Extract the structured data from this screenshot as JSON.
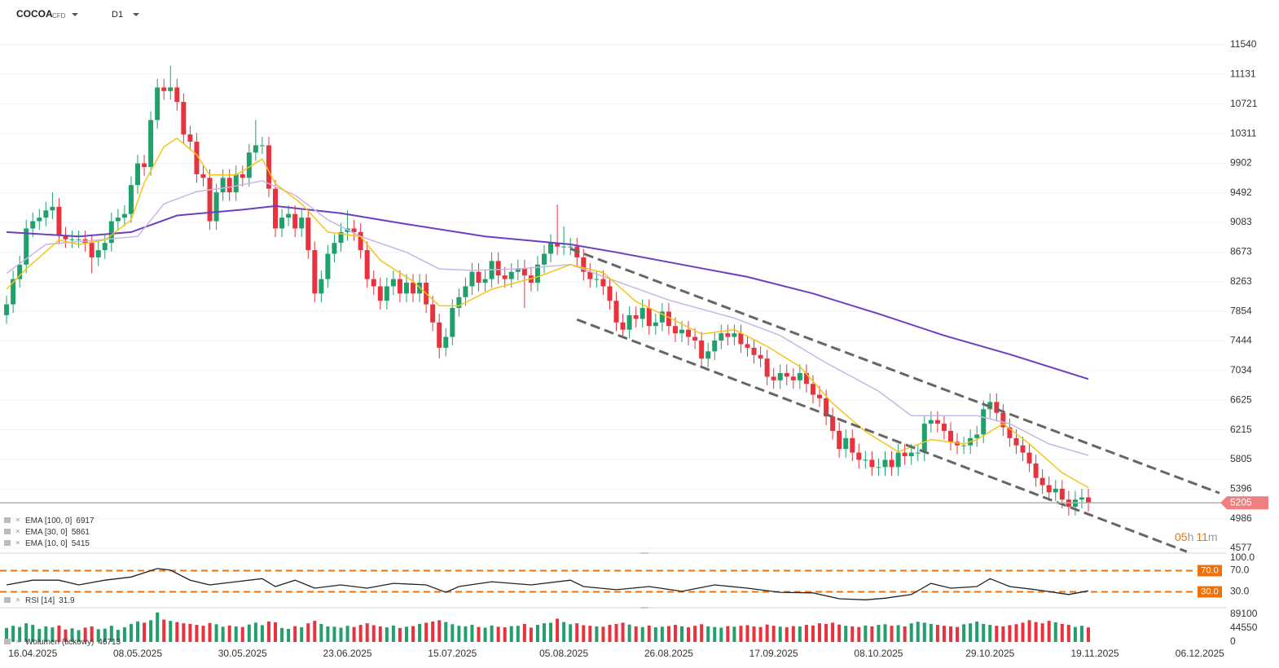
{
  "header": {
    "symbol": "COCOA",
    "kind": "CFD",
    "timeframe": "D1"
  },
  "countdown": {
    "hours": "05",
    "h": "h",
    "minutes": "11",
    "m": "m"
  },
  "chart_data": [
    {
      "type": "candlestick",
      "up_color": "#22a06b",
      "down_color": "#e8323e",
      "grid": true,
      "xlim": [
        -1,
        186
      ],
      "ylim": [
        4577,
        11540
      ],
      "yticks": [
        11540,
        11131,
        10721,
        10311,
        9902,
        9492,
        9083,
        8673,
        8263,
        7854,
        7444,
        7034,
        6625,
        6215,
        5805,
        5396,
        4986,
        4577
      ],
      "xticks": [
        {
          "value": 4,
          "label": "16.04.2025"
        },
        {
          "value": 20,
          "label": "08.05.2025"
        },
        {
          "value": 36,
          "label": "30.05.2025"
        },
        {
          "value": 52,
          "label": "23.06.2025"
        },
        {
          "value": 68,
          "label": "15.07.2025"
        },
        {
          "value": 85,
          "label": "05.08.2025"
        },
        {
          "value": 101,
          "label": "26.08.2025"
        },
        {
          "value": 117,
          "label": "17.09.2025"
        },
        {
          "value": 133,
          "label": "08.10.2025"
        },
        {
          "value": 150,
          "label": "29.10.2025"
        },
        {
          "value": 166,
          "label": "19.11.2025"
        },
        {
          "value": 182,
          "label": "06.12.2025"
        }
      ],
      "open": [
        7800,
        7950,
        8300,
        8500,
        9000,
        9100,
        9150,
        9250,
        9300,
        8900,
        8850,
        8850,
        8850,
        8800,
        8600,
        8700,
        8800,
        9100,
        9150,
        9200,
        9600,
        9900,
        9850,
        10500,
        10950,
        10900,
        10950,
        10750,
        10300,
        10200,
        9750,
        9700,
        9100,
        9500,
        9700,
        9500,
        9750,
        9700,
        10050,
        10150,
        10150,
        9550,
        9000,
        9150,
        9200,
        9000,
        9150,
        8700,
        8100,
        8300,
        8650,
        8800,
        8950,
        9000,
        8950,
        8700,
        8300,
        8200,
        8000,
        8200,
        8300,
        8100,
        8250,
        8100,
        8250,
        7950,
        7700,
        7350,
        7500,
        7900,
        8050,
        8200,
        8400,
        8250,
        8300,
        8550,
        8350,
        8300,
        8400,
        8450,
        8350,
        8250,
        8500,
        8650,
        8800,
        8750,
        8750,
        8750,
        8600,
        8400,
        8300,
        8300,
        8200,
        8000,
        7700,
        7600,
        7800,
        7750,
        7900,
        7650,
        7700,
        7850,
        7650,
        7550,
        7600,
        7500,
        7450,
        7200,
        7300,
        7450,
        7550,
        7500,
        7550,
        7400,
        7350,
        7250,
        7200,
        6950,
        6900,
        7000,
        6950,
        6900,
        7000,
        6850,
        6700,
        6650,
        6400,
        6200,
        5950,
        6100,
        5900,
        5800,
        5800,
        5700,
        5700,
        5800,
        5700,
        5900,
        5850,
        5900,
        5900,
        6300,
        6350,
        6300,
        6200,
        6050,
        6000,
        6000,
        6100,
        6150,
        6500,
        6600,
        6450,
        6250,
        6100,
        6000,
        5900,
        5750,
        5550,
        5450,
        5350,
        5400,
        5250,
        5150,
        5250,
        5280
      ],
      "high": [
        8070,
        8420,
        8620,
        9120,
        9220,
        9270,
        9370,
        9500,
        9420,
        9020,
        8970,
        8970,
        8970,
        8920,
        8820,
        8920,
        9220,
        9270,
        9320,
        9720,
        10020,
        10020,
        10620,
        11070,
        11070,
        11250,
        11070,
        10870,
        10420,
        10320,
        9870,
        9820,
        9620,
        9820,
        9820,
        9870,
        9870,
        10170,
        10500,
        10270,
        10270,
        9670,
        9270,
        9320,
        9320,
        9270,
        9270,
        8820,
        8420,
        8770,
        8920,
        9070,
        9250,
        9120,
        9070,
        8820,
        8420,
        8320,
        8320,
        8420,
        8420,
        8370,
        8370,
        8370,
        8370,
        8070,
        7820,
        7620,
        8020,
        8170,
        8320,
        8520,
        8520,
        8420,
        8670,
        8670,
        8470,
        8520,
        8570,
        8570,
        8470,
        8620,
        8770,
        8920,
        9330,
        9030,
        8870,
        8870,
        8720,
        8520,
        8420,
        8420,
        8320,
        8120,
        7820,
        7920,
        7920,
        8020,
        8020,
        7820,
        7970,
        7970,
        7770,
        7720,
        7720,
        7620,
        7570,
        7420,
        7570,
        7670,
        7670,
        7670,
        7670,
        7520,
        7470,
        7370,
        7320,
        7070,
        7120,
        7120,
        7070,
        7120,
        7120,
        6970,
        6820,
        6770,
        6520,
        6320,
        6220,
        6220,
        6020,
        5920,
        5920,
        5820,
        5920,
        5920,
        6020,
        6020,
        6020,
        6020,
        6420,
        6470,
        6470,
        6420,
        6320,
        6170,
        6120,
        6220,
        6270,
        6620,
        6720,
        6720,
        6570,
        6370,
        6220,
        6120,
        6020,
        5870,
        5670,
        5570,
        5520,
        5520,
        5370,
        5370,
        5400,
        5400
      ],
      "low": [
        7680,
        7830,
        8180,
        8380,
        8880,
        8980,
        9030,
        9130,
        8780,
        8730,
        8730,
        8730,
        8680,
        8380,
        8480,
        8580,
        8680,
        8980,
        9030,
        9080,
        9480,
        9730,
        9730,
        10380,
        10780,
        10780,
        10630,
        10180,
        10080,
        9630,
        9580,
        8980,
        8980,
        9380,
        9380,
        9380,
        9580,
        9580,
        9930,
        10030,
        9430,
        8880,
        8880,
        9030,
        8880,
        8880,
        8580,
        7980,
        7980,
        8180,
        8530,
        8680,
        8830,
        8830,
        8580,
        8180,
        8080,
        7880,
        7880,
        8080,
        7980,
        7980,
        7980,
        7980,
        7830,
        7580,
        7200,
        7230,
        7380,
        7780,
        7930,
        8080,
        8130,
        8130,
        8180,
        8230,
        8180,
        8180,
        8280,
        7900,
        8130,
        8130,
        8380,
        8530,
        8630,
        8630,
        8630,
        8480,
        8280,
        8180,
        8180,
        8080,
        7880,
        7580,
        7480,
        7480,
        7630,
        7630,
        7530,
        7530,
        7580,
        7530,
        7430,
        7430,
        7380,
        7330,
        7080,
        7080,
        7180,
        7330,
        7380,
        7380,
        7280,
        7230,
        7130,
        7080,
        6830,
        6780,
        6780,
        6830,
        6780,
        6780,
        6730,
        6580,
        6530,
        6280,
        6080,
        5830,
        5830,
        5780,
        5680,
        5680,
        5580,
        5580,
        5580,
        5580,
        5580,
        5730,
        5730,
        5780,
        5780,
        6180,
        6180,
        6080,
        5930,
        5880,
        5880,
        5880,
        5980,
        6030,
        6380,
        6330,
        6130,
        5980,
        5880,
        5780,
        5630,
        5430,
        5330,
        5230,
        5230,
        5130,
        5030,
        5030,
        5130,
        5085
      ],
      "close": [
        7950,
        8300,
        8500,
        9000,
        9100,
        9150,
        9250,
        9300,
        8900,
        8850,
        8850,
        8850,
        8800,
        8600,
        8700,
        8800,
        9100,
        9150,
        9200,
        9600,
        9900,
        9850,
        10500,
        10950,
        10900,
        10950,
        10750,
        10300,
        10200,
        9750,
        9700,
        9100,
        9500,
        9700,
        9500,
        9750,
        9700,
        10050,
        10150,
        10150,
        9550,
        9000,
        9150,
        9200,
        9000,
        9150,
        8700,
        8100,
        8300,
        8650,
        8800,
        8950,
        9000,
        8950,
        8700,
        8300,
        8200,
        8000,
        8200,
        8300,
        8100,
        8250,
        8100,
        8250,
        7950,
        7700,
        7350,
        7500,
        7900,
        8050,
        8200,
        8400,
        8250,
        8300,
        8550,
        8350,
        8300,
        8400,
        8450,
        8350,
        8250,
        8500,
        8650,
        8800,
        8750,
        8750,
        8750,
        8600,
        8400,
        8300,
        8300,
        8200,
        8000,
        7700,
        7600,
        7800,
        7750,
        7900,
        7650,
        7700,
        7850,
        7650,
        7550,
        7600,
        7500,
        7450,
        7200,
        7300,
        7450,
        7550,
        7500,
        7550,
        7400,
        7350,
        7250,
        7200,
        6950,
        6900,
        7000,
        6950,
        6900,
        7000,
        6850,
        6700,
        6650,
        6400,
        6200,
        5950,
        6100,
        5900,
        5800,
        5800,
        5700,
        5700,
        5800,
        5700,
        5900,
        5850,
        5900,
        5900,
        6300,
        6350,
        6300,
        6200,
        6050,
        6000,
        6000,
        6100,
        6150,
        6500,
        6600,
        6450,
        6250,
        6100,
        6000,
        5900,
        5750,
        5550,
        5450,
        5350,
        5400,
        5250,
        5150,
        5250,
        5280,
        5205
      ],
      "series": [
        {
          "name": "EMA [100,  0]",
          "color": "#6a3fc0",
          "x": [
            0,
            11,
            19,
            26,
            36,
            41,
            51,
            61,
            73,
            86,
            93,
            103,
            113,
            123,
            133,
            143,
            153,
            165
          ],
          "values": [
            8950,
            8890,
            8950,
            9180,
            9260,
            9310,
            9210,
            9060,
            8890,
            8780,
            8670,
            8500,
            8330,
            8100,
            7820,
            7520,
            7260,
            6917
          ]
        },
        {
          "name": "EMA [30,  0]",
          "color": "#c9b6e4",
          "x": [
            0,
            6,
            14,
            20,
            24,
            29,
            34,
            39,
            44,
            49,
            54,
            61,
            66,
            71,
            78,
            86,
            93,
            101,
            111,
            118,
            125,
            133,
            138,
            143,
            148,
            153,
            159,
            165
          ],
          "values": [
            8380,
            8780,
            8840,
            8890,
            9340,
            9510,
            9570,
            9660,
            9460,
            9120,
            8890,
            8670,
            8440,
            8420,
            8440,
            8500,
            8270,
            8010,
            7760,
            7520,
            7140,
            6750,
            6410,
            6410,
            6410,
            6300,
            6020,
            5861
          ]
        },
        {
          "name": "EMA [10,  0]",
          "color": "#f5c518",
          "x": [
            0,
            3,
            8,
            11,
            15,
            19,
            21,
            24,
            26,
            29,
            31,
            35,
            39,
            41,
            45,
            49,
            54,
            57,
            62,
            66,
            69,
            74,
            81,
            86,
            91,
            96,
            101,
            106,
            111,
            116,
            121,
            126,
            131,
            136,
            141,
            146,
            148,
            152,
            156,
            161,
            165
          ],
          "values": [
            8160,
            8440,
            8840,
            8780,
            8840,
            9120,
            9630,
            10130,
            10250,
            10020,
            9740,
            9740,
            9960,
            9620,
            9340,
            8950,
            8890,
            8560,
            8270,
            7930,
            7930,
            8160,
            8330,
            8500,
            8390,
            7990,
            7770,
            7540,
            7600,
            7370,
            7090,
            6580,
            6190,
            5910,
            6080,
            6020,
            6080,
            6300,
            6020,
            5620,
            5415
          ]
        }
      ],
      "trendlines": [
        {
          "x": [
            86,
            185
          ],
          "values": [
            8720,
            5340
          ]
        },
        {
          "x": [
            87,
            180
          ],
          "values": [
            7740,
            4530
          ]
        }
      ]
    },
    {
      "type": "line",
      "name": "RSI [14]",
      "color": "#222222",
      "level_color": "#f0700a",
      "ylim": [
        0,
        100
      ],
      "yticks": [
        {
          "value": 100,
          "label": "100.0"
        },
        {
          "value": 70,
          "label": "70.0"
        },
        {
          "value": 30,
          "label": "30.0"
        }
      ],
      "levels": [
        {
          "value": 70,
          "label": "70.0"
        },
        {
          "value": 30,
          "label": "30.0"
        }
      ],
      "x": [
        0,
        4,
        8,
        11,
        15,
        19,
        23,
        25,
        28,
        31,
        35,
        39,
        41,
        44,
        47,
        51,
        55,
        59,
        64,
        67,
        69,
        74,
        80,
        86,
        88,
        93,
        98,
        103,
        108,
        113,
        118,
        123,
        127,
        131,
        134,
        138,
        141,
        144,
        148,
        150,
        153,
        157,
        162,
        165
      ],
      "values": [
        43,
        52,
        52,
        43,
        52,
        58,
        74,
        71,
        52,
        43,
        49,
        55,
        40,
        52,
        37,
        43,
        37,
        46,
        43,
        29,
        40,
        49,
        43,
        52,
        40,
        34,
        40,
        31,
        43,
        37,
        29,
        28,
        17,
        15,
        18,
        25,
        46,
        37,
        40,
        55,
        40,
        34,
        25,
        31.9
      ]
    },
    {
      "type": "bar",
      "name": "Wolumen (tickowy)",
      "ylim": [
        0,
        105000
      ],
      "yticks": [
        89100,
        44550,
        0
      ],
      "values": [
        45000,
        52000,
        48000,
        60000,
        55000,
        42000,
        50000,
        47000,
        53000,
        40000,
        44000,
        38000,
        46000,
        50000,
        41000,
        43000,
        52000,
        39000,
        47000,
        58000,
        66000,
        62000,
        70000,
        95000,
        72000,
        68000,
        64000,
        60000,
        58000,
        55000,
        52000,
        61000,
        57000,
        49000,
        53000,
        50000,
        48000,
        56000,
        62000,
        54000,
        66000,
        63000,
        45000,
        42000,
        51000,
        47000,
        60000,
        68000,
        58000,
        50000,
        49000,
        46000,
        52000,
        48000,
        55000,
        60000,
        54000,
        50000,
        47000,
        53000,
        45000,
        49000,
        51000,
        58000,
        62000,
        66000,
        70000,
        64000,
        57000,
        52000,
        50000,
        55000,
        48000,
        46000,
        53000,
        49000,
        47000,
        51000,
        52000,
        58000,
        46000,
        55000,
        60000,
        62000,
        75000,
        64000,
        57000,
        60000,
        54000,
        52000,
        50000,
        49000,
        55000,
        58000,
        62000,
        56000,
        50000,
        48000,
        53000,
        47000,
        49000,
        51000,
        55000,
        50000,
        47000,
        52000,
        57000,
        50000,
        48000,
        46000,
        51000,
        49000,
        52000,
        54000,
        50000,
        48000,
        56000,
        52000,
        49000,
        47000,
        51000,
        50000,
        55000,
        53000,
        60000,
        58000,
        62000,
        56000,
        52000,
        50000,
        48000,
        53000,
        50000,
        55000,
        57000,
        52000,
        54000,
        50000,
        60000,
        65000,
        62000,
        58000,
        55000,
        52000,
        50000,
        48000,
        57000,
        60000,
        66000,
        58000,
        55000,
        52000,
        50000,
        54000,
        57000,
        62000,
        70000,
        64000,
        60000,
        68000,
        63000,
        58000,
        55000,
        48000,
        52000,
        46713
      ]
    }
  ]
}
